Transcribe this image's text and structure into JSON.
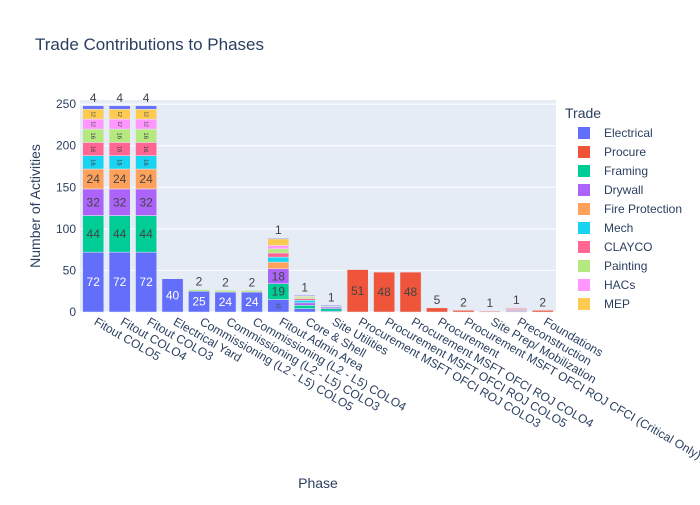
{
  "chart_data": {
    "type": "bar",
    "barmode": "stack",
    "title": "Trade Contributions to Phases",
    "xlabel": "Phase",
    "ylabel": "Number of Activities",
    "ylim": [
      0,
      255
    ],
    "yticks": [
      0,
      50,
      100,
      150,
      200,
      250
    ],
    "grid": true,
    "legend": {
      "title": "Trade",
      "position": "right"
    },
    "categories": [
      "Fitout COLO5",
      "Fitout COLO4",
      "Fitout COLO3",
      "Electrical Yard",
      "Commissioning (L2 - L5) COLO5",
      "Commissioning (L2 - L5) COLO3",
      "Commissioning (L2 - L5) COLO4",
      "Fitout Admin Area",
      "Core & Shell",
      "Site Utilities",
      "Procurement MSFT OFCI ROJ COLO3",
      "Procurement MSFT OFCI ROJ COLO5",
      "Procurement MSFT OFCI ROJ COLO4",
      "Procurement",
      "Procurement MSFT OFCI ROJ CFCI (Critical Only)",
      "Site Prep/ Mobilization",
      "Preconstruction",
      "Foundations"
    ],
    "series": [
      {
        "name": "Electrical",
        "color": "#636efa",
        "values": [
          72,
          72,
          72,
          40,
          25,
          24,
          24,
          15,
          4,
          1,
          0,
          0,
          0,
          0,
          0,
          0,
          1,
          0
        ]
      },
      {
        "name": "Procure",
        "color": "#ef553b",
        "values": [
          0,
          0,
          0,
          0,
          0,
          0,
          0,
          0,
          0,
          0,
          51,
          48,
          48,
          5,
          2,
          1,
          1,
          2
        ]
      },
      {
        "name": "Framing",
        "color": "#00cc96",
        "values": [
          44,
          44,
          44,
          0,
          0,
          0,
          0,
          19,
          4,
          3,
          0,
          0,
          0,
          0,
          0,
          0,
          0,
          0
        ]
      },
      {
        "name": "Drywall",
        "color": "#ab63fa",
        "values": [
          32,
          32,
          32,
          0,
          0,
          0,
          0,
          18,
          3,
          2,
          0,
          0,
          0,
          0,
          0,
          0,
          1,
          0
        ]
      },
      {
        "name": "Fire Protection",
        "color": "#ffa15a",
        "values": [
          24,
          24,
          24,
          0,
          0,
          0,
          0,
          8,
          0,
          0,
          0,
          0,
          0,
          0,
          0,
          0,
          1,
          0
        ]
      },
      {
        "name": "Mech",
        "color": "#19d3f3",
        "values": [
          16,
          16,
          16,
          0,
          0,
          0,
          0,
          6,
          3,
          0,
          0,
          0,
          0,
          0,
          0,
          0,
          0,
          0
        ]
      },
      {
        "name": "CLAYCO",
        "color": "#ff6692",
        "values": [
          16,
          16,
          16,
          0,
          0,
          0,
          0,
          5,
          2,
          0,
          0,
          0,
          0,
          0,
          0,
          0,
          1,
          0
        ]
      },
      {
        "name": "Painting",
        "color": "#b6e880",
        "values": [
          16,
          16,
          16,
          0,
          2,
          2,
          2,
          5,
          2,
          1,
          0,
          0,
          0,
          0,
          0,
          0,
          0,
          0
        ]
      },
      {
        "name": "HACs",
        "color": "#ff97ff",
        "values": [
          12,
          12,
          12,
          0,
          0,
          0,
          0,
          4,
          0,
          0,
          0,
          0,
          0,
          0,
          0,
          0,
          0,
          0
        ]
      },
      {
        "name": "MEP",
        "color": "#fecb52",
        "values": [
          12,
          12,
          12,
          0,
          0,
          0,
          0,
          8,
          1,
          0,
          0,
          0,
          0,
          0,
          0,
          0,
          0,
          0
        ]
      },
      {
        "name": "",
        "color": "#636efa",
        "values": [
          4,
          4,
          4,
          0,
          0,
          0,
          0,
          1,
          1,
          1,
          0,
          0,
          0,
          0,
          0,
          0,
          0,
          0
        ]
      }
    ]
  }
}
